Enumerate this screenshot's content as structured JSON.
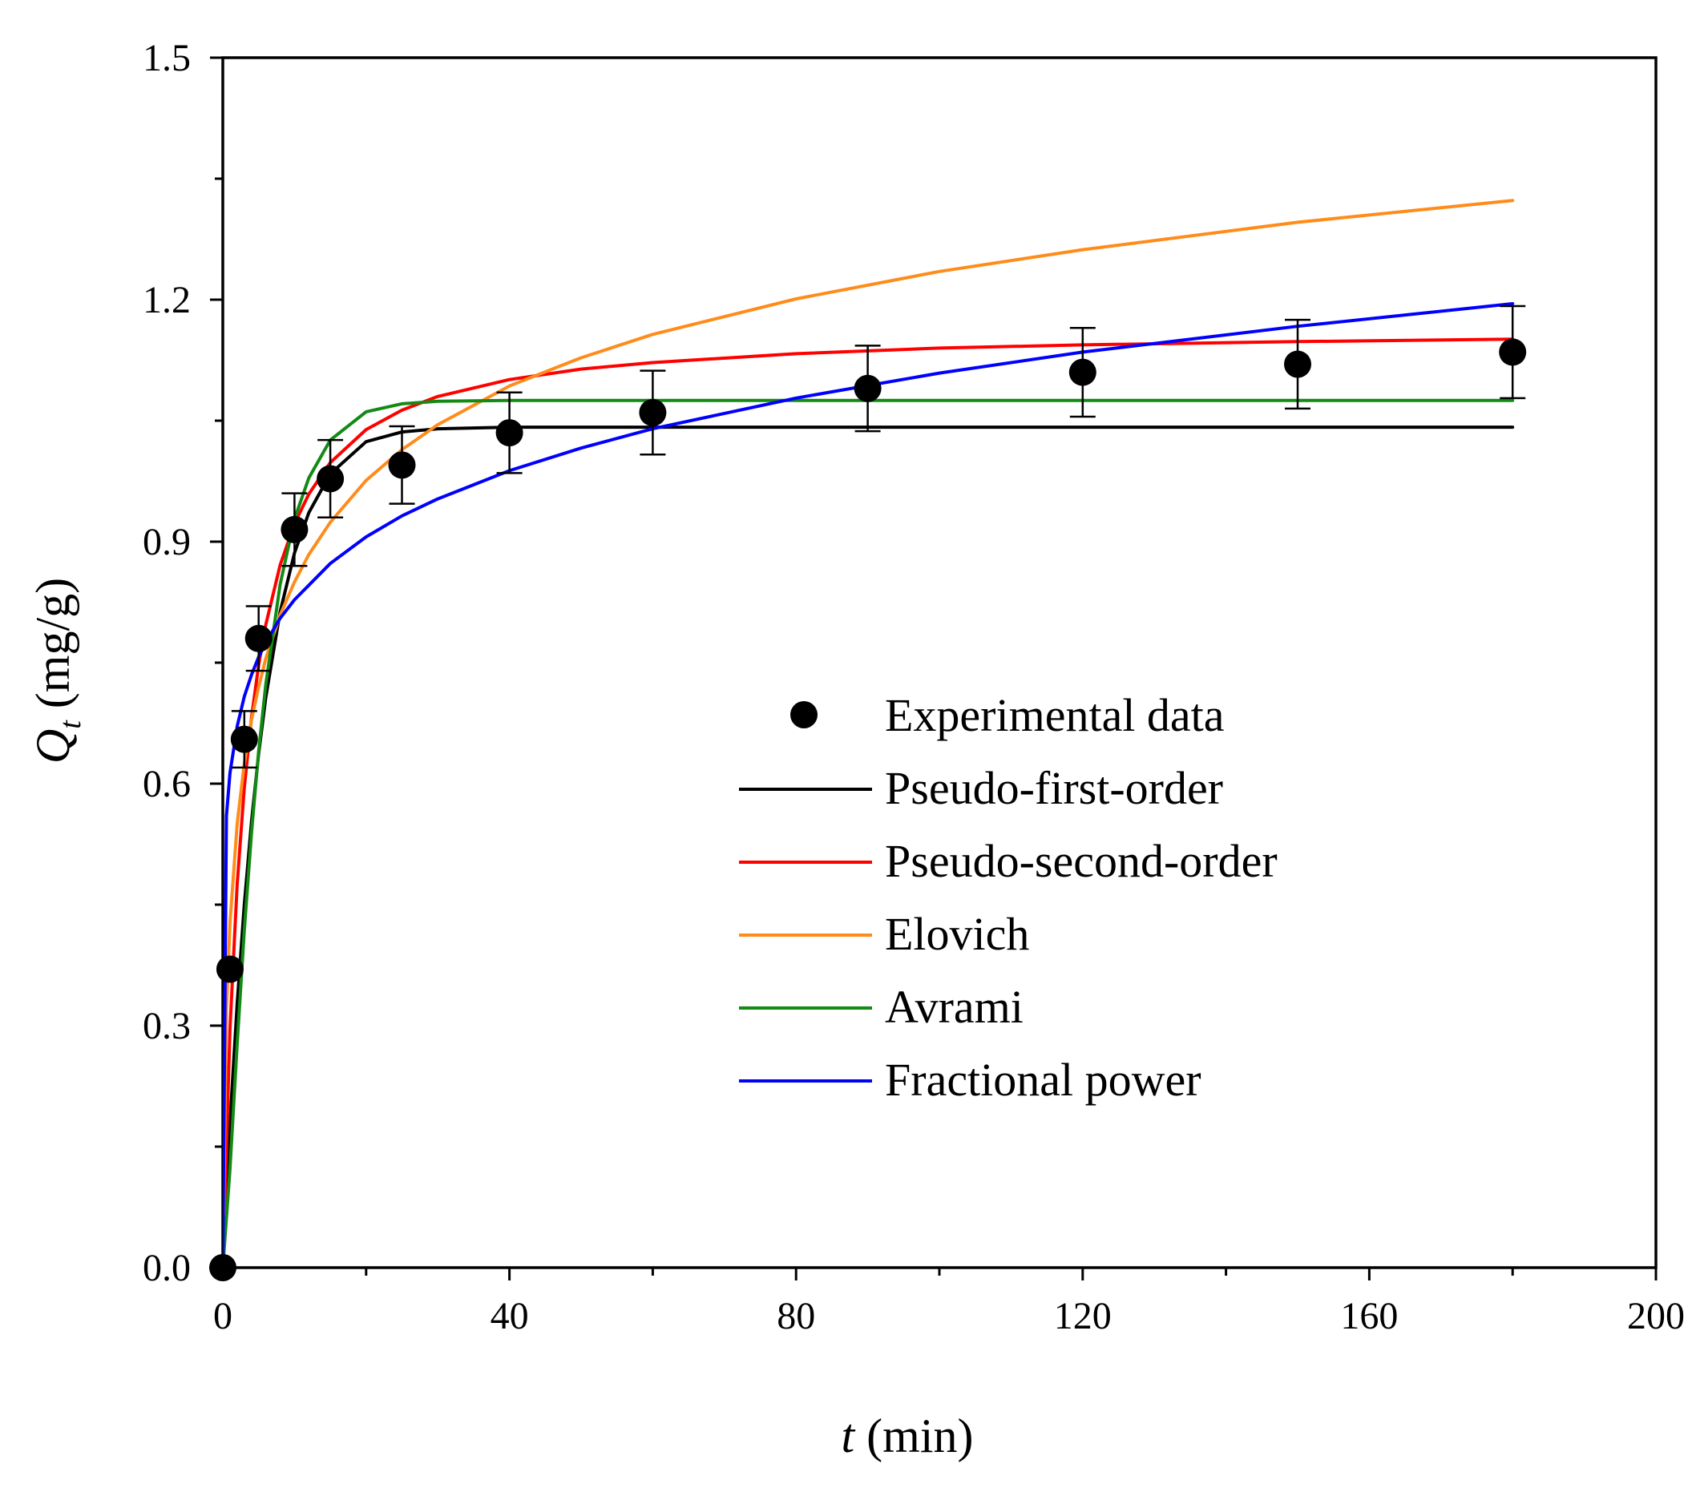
{
  "chart_data": {
    "type": "line",
    "xlabel": {
      "var": "t",
      "unit": " (min)"
    },
    "ylabel": {
      "var": "Q",
      "sub": "t",
      "unit": " (mg/g)"
    },
    "xlim": [
      0,
      200
    ],
    "ylim": [
      0,
      1.5
    ],
    "xticks": [
      0,
      40,
      80,
      120,
      160,
      200
    ],
    "xtick_labels": [
      "0",
      "40",
      "80",
      "120",
      "160",
      "200"
    ],
    "yticks": [
      0,
      0.3,
      0.6,
      0.9,
      1.2,
      1.5
    ],
    "ytick_labels": [
      "0.0",
      "0.3",
      "0.6",
      "0.9",
      "1.2",
      "1.5"
    ],
    "x_minor_step": 20,
    "y_minor_step": 0.15,
    "legend_position": "center-right",
    "experimental": {
      "name": "Experimental data",
      "color": "#000000",
      "points": [
        {
          "x": 0,
          "y": 0.0,
          "err": 0
        },
        {
          "x": 1,
          "y": 0.37,
          "err": 0
        },
        {
          "x": 3,
          "y": 0.655,
          "err": 0.035
        },
        {
          "x": 5,
          "y": 0.78,
          "err": 0.04
        },
        {
          "x": 10,
          "y": 0.915,
          "err": 0.045
        },
        {
          "x": 15,
          "y": 0.978,
          "err": 0.048
        },
        {
          "x": 25,
          "y": 0.995,
          "err": 0.048
        },
        {
          "x": 40,
          "y": 1.035,
          "err": 0.05
        },
        {
          "x": 60,
          "y": 1.06,
          "err": 0.052
        },
        {
          "x": 90,
          "y": 1.09,
          "err": 0.053
        },
        {
          "x": 120,
          "y": 1.11,
          "err": 0.055
        },
        {
          "x": 150,
          "y": 1.12,
          "err": 0.055
        },
        {
          "x": 180,
          "y": 1.135,
          "err": 0.057
        }
      ]
    },
    "series": [
      {
        "name": "Pseudo-first-order",
        "color": "#000000",
        "x": [
          0,
          1,
          2,
          3,
          4,
          5,
          6,
          8,
          10,
          12,
          15,
          20,
          25,
          30,
          40,
          60,
          90,
          120,
          150,
          180
        ],
        "values": [
          0,
          0.179,
          0.327,
          0.45,
          0.553,
          0.637,
          0.707,
          0.813,
          0.886,
          0.936,
          0.984,
          1.024,
          1.036,
          1.04,
          1.042,
          1.042,
          1.042,
          1.042,
          1.042,
          1.042
        ]
      },
      {
        "name": "Pseudo-second-order",
        "color": "#ff0000",
        "x": [
          0,
          1,
          2,
          3,
          4,
          5,
          6,
          8,
          10,
          12,
          15,
          20,
          25,
          30,
          40,
          50,
          60,
          80,
          100,
          120,
          150,
          180
        ],
        "values": [
          0,
          0.295,
          0.475,
          0.595,
          0.682,
          0.747,
          0.797,
          0.871,
          0.922,
          0.959,
          0.998,
          1.039,
          1.063,
          1.08,
          1.101,
          1.114,
          1.122,
          1.133,
          1.14,
          1.144,
          1.148,
          1.151
        ]
      },
      {
        "name": "Elovich",
        "color": "#ff8c1a",
        "x": [
          0,
          0.5,
          1,
          2,
          3,
          4,
          5,
          6,
          8,
          10,
          12,
          15,
          20,
          25,
          30,
          40,
          50,
          60,
          80,
          100,
          120,
          150,
          180
        ],
        "values": [
          0,
          0.32,
          0.427,
          0.55,
          0.625,
          0.679,
          0.72,
          0.755,
          0.809,
          0.85,
          0.884,
          0.924,
          0.976,
          1.014,
          1.045,
          1.093,
          1.128,
          1.157,
          1.201,
          1.235,
          1.262,
          1.296,
          1.323
        ]
      },
      {
        "name": "Avrami",
        "color": "#138a13",
        "x": [
          0,
          1,
          2,
          3,
          4,
          5,
          6,
          8,
          10,
          12,
          15,
          20,
          25,
          30,
          40,
          60,
          90,
          120,
          150,
          180
        ],
        "values": [
          0,
          0.122,
          0.277,
          0.418,
          0.539,
          0.64,
          0.723,
          0.847,
          0.928,
          0.979,
          1.026,
          1.061,
          1.071,
          1.074,
          1.075,
          1.075,
          1.075,
          1.075,
          1.075,
          1.075
        ]
      },
      {
        "name": "Fractional power",
        "color": "#0000ff",
        "x": [
          0,
          0.5,
          1,
          2,
          3,
          4,
          5,
          6,
          8,
          10,
          15,
          20,
          25,
          30,
          40,
          50,
          60,
          80,
          100,
          120,
          150,
          180
        ],
        "values": [
          0,
          0.56,
          0.613,
          0.671,
          0.708,
          0.735,
          0.757,
          0.775,
          0.805,
          0.828,
          0.873,
          0.906,
          0.932,
          0.953,
          0.988,
          1.016,
          1.04,
          1.078,
          1.109,
          1.135,
          1.167,
          1.195
        ]
      }
    ]
  }
}
